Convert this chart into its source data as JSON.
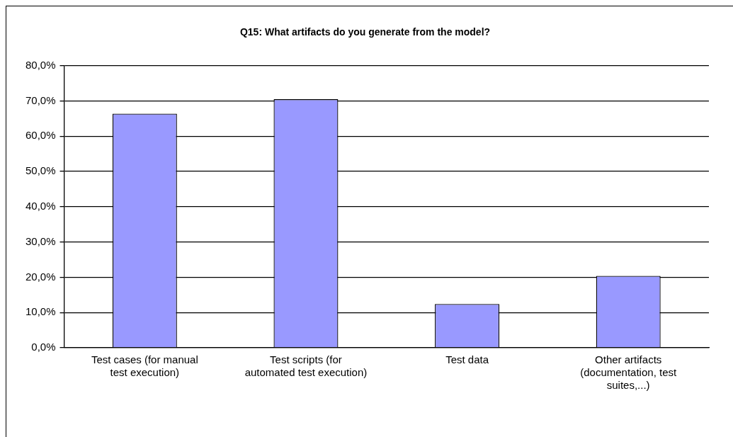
{
  "chart_data": {
    "type": "bar",
    "title": "Q15: What artifacts do you generate from the model?",
    "categories": [
      "Test cases (for manual test execution)",
      "Test scripts (for automated test execution)",
      "Test data",
      "Other artifacts (documentation, test suites,...)"
    ],
    "values": [
      66.4,
      70.5,
      12.4,
      20.4
    ],
    "color": "#9999ff",
    "ylim": [
      0,
      80
    ],
    "yticks": [
      {
        "value": 0,
        "label": "0,0%"
      },
      {
        "value": 10,
        "label": "10,0%"
      },
      {
        "value": 20,
        "label": "20,0%"
      },
      {
        "value": 30,
        "label": "30,0%"
      },
      {
        "value": 40,
        "label": "40,0%"
      },
      {
        "value": 50,
        "label": "50,0%"
      },
      {
        "value": 60,
        "label": "60,0%"
      },
      {
        "value": 70,
        "label": "70,0%"
      },
      {
        "value": 80,
        "label": "80,0%"
      }
    ],
    "grid": "y",
    "legend": false
  }
}
